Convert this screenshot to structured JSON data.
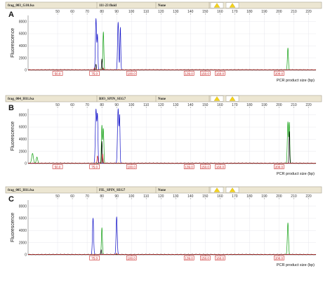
{
  "chart_data": [
    {
      "type": "line",
      "panel_letter": "A",
      "header": {
        "file": "frag_003_G10.fsa",
        "sample": "111-23 fluid",
        "status": "None"
      },
      "ylabel": "Fluorescence",
      "xlabel": "PCR product size (bp)",
      "xlim": [
        30,
        225
      ],
      "ylim": [
        0,
        9000
      ],
      "x_ticks": [
        50,
        60,
        70,
        80,
        90,
        100,
        110,
        120,
        130,
        140,
        150,
        160,
        170,
        180,
        190,
        200,
        210,
        220
      ],
      "y_ticks": [
        0,
        2000,
        4000,
        6000,
        8000
      ],
      "size_labels": [
        "50.0",
        "75.0",
        "100.0",
        "139.0",
        "150.0",
        "160.0",
        "200.0"
      ],
      "size_label_positions": [
        50,
        75,
        100,
        139,
        150,
        160,
        200
      ],
      "series": [
        {
          "color": "#1010c8",
          "peaks": [
            {
              "x": 76,
              "h": 8400,
              "w": 0.8
            },
            {
              "x": 77,
              "h": 5600,
              "w": 0.6
            },
            {
              "x": 91,
              "h": 7800,
              "w": 0.8
            },
            {
              "x": 92.5,
              "h": 7000,
              "w": 0.6
            }
          ]
        },
        {
          "color": "#10a010",
          "peaks": [
            {
              "x": 81,
              "h": 6200,
              "w": 0.7
            },
            {
              "x": 206,
              "h": 3600,
              "w": 0.7
            }
          ]
        },
        {
          "color": "#000000",
          "peaks": [
            {
              "x": 80,
              "h": 1800,
              "w": 0.5
            },
            {
              "x": 76,
              "h": 900,
              "w": 0.5
            }
          ]
        },
        {
          "color": "#cc2020",
          "peaks": [
            {
              "x": 75,
              "h": 300,
              "w": 0.6
            },
            {
              "x": 81,
              "h": 250,
              "w": 0.6
            }
          ]
        }
      ]
    },
    {
      "type": "line",
      "panel_letter": "B",
      "header": {
        "file": "frag_004_H11.fsa",
        "sample": "BIO_SPIN_SEG7",
        "status": "None"
      },
      "ylabel": "Fluorescence",
      "xlabel": "PCR product size (bp)",
      "xlim": [
        30,
        225
      ],
      "ylim": [
        0,
        9000
      ],
      "x_ticks": [
        50,
        60,
        70,
        80,
        90,
        100,
        110,
        120,
        130,
        140,
        150,
        160,
        170,
        180,
        190,
        200,
        210,
        220
      ],
      "y_ticks": [
        0,
        2000,
        4000,
        6000,
        8000
      ],
      "size_labels": [
        "50.0",
        "75.0",
        "100.0",
        "139.0",
        "150.0",
        "160.0",
        "200.0"
      ],
      "size_label_positions": [
        50,
        75,
        100,
        139,
        150,
        160,
        200
      ],
      "series": [
        {
          "color": "#1010c8",
          "peaks": [
            {
              "x": 76,
              "h": 8800,
              "w": 0.9
            },
            {
              "x": 77,
              "h": 7600,
              "w": 0.7
            },
            {
              "x": 91,
              "h": 8900,
              "w": 0.9
            },
            {
              "x": 92,
              "h": 7400,
              "w": 0.6
            }
          ]
        },
        {
          "color": "#10a010",
          "peaks": [
            {
              "x": 80,
              "h": 6200,
              "w": 0.7
            },
            {
              "x": 81,
              "h": 5600,
              "w": 0.7
            },
            {
              "x": 206,
              "h": 6800,
              "w": 0.8
            },
            {
              "x": 207,
              "h": 6500,
              "w": 0.6
            },
            {
              "x": 33,
              "h": 1600,
              "w": 1.2
            },
            {
              "x": 36,
              "h": 1000,
              "w": 1.0
            }
          ]
        },
        {
          "color": "#000000",
          "peaks": [
            {
              "x": 80,
              "h": 3600,
              "w": 0.5
            },
            {
              "x": 207,
              "h": 5200,
              "w": 0.5
            }
          ]
        },
        {
          "color": "#cc2020",
          "peaks": [
            {
              "x": 77,
              "h": 1200,
              "w": 0.6
            },
            {
              "x": 80.5,
              "h": 1500,
              "w": 0.5
            }
          ]
        }
      ]
    },
    {
      "type": "line",
      "panel_letter": "C",
      "header": {
        "file": "frag_005_H11.fsa",
        "sample": "FIL_SPIN_SEG7",
        "status": "None"
      },
      "ylabel": "Fluorescence",
      "xlabel": "PCR product size (bp)",
      "xlim": [
        30,
        225
      ],
      "ylim": [
        0,
        9000
      ],
      "x_ticks": [
        50,
        60,
        70,
        80,
        90,
        100,
        110,
        120,
        130,
        140,
        150,
        160,
        170,
        180,
        190,
        200,
        210,
        220
      ],
      "y_ticks": [
        0,
        2000,
        4000,
        6000,
        8000
      ],
      "size_labels": [
        "75.0",
        "100.0",
        "139.0",
        "150.0",
        "160.0",
        "200.0"
      ],
      "size_label_positions": [
        75,
        100,
        139,
        150,
        160,
        200
      ],
      "series": [
        {
          "color": "#1010c8",
          "peaks": [
            {
              "x": 74,
              "h": 6000,
              "w": 0.8
            },
            {
              "x": 90,
              "h": 6200,
              "w": 0.8
            }
          ]
        },
        {
          "color": "#10a010",
          "peaks": [
            {
              "x": 80,
              "h": 4400,
              "w": 0.7
            },
            {
              "x": 206,
              "h": 5200,
              "w": 0.8
            }
          ]
        },
        {
          "color": "#000000",
          "peaks": [
            {
              "x": 79.5,
              "h": 800,
              "w": 0.5
            }
          ]
        },
        {
          "color": "#cc2020",
          "peaks": [
            {
              "x": 90,
              "h": 200,
              "w": 0.6
            }
          ]
        }
      ]
    }
  ]
}
